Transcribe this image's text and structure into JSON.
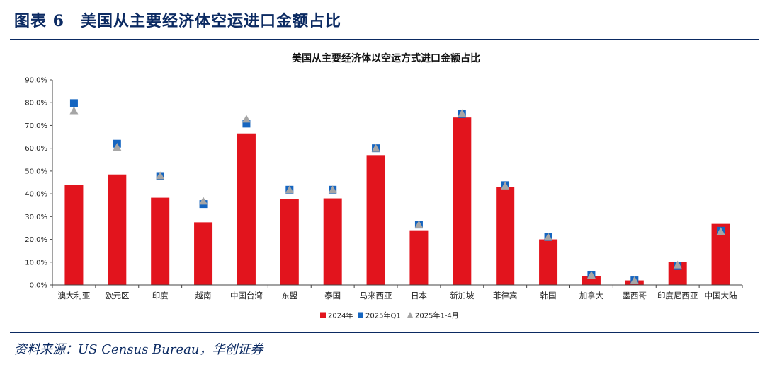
{
  "header": {
    "figure_title": "图表 6　美国从主要经济体空运进口金额占比"
  },
  "footer": {
    "source": "资料来源：US Census Bureau，华创证券"
  },
  "colors": {
    "brand_navy": "#0b2a62",
    "series_2024": "#e2141d",
    "series_2025q1": "#1565c0",
    "series_2025_1_4": "#a6a6a6"
  },
  "chart_data": {
    "type": "bar",
    "title": "美国从主要经济体以空运方式进口金额占比",
    "xlabel": "",
    "ylabel": "",
    "ylim": [
      0,
      90
    ],
    "yticks": [
      "0.0%",
      "10.0%",
      "20.0%",
      "30.0%",
      "40.0%",
      "50.0%",
      "60.0%",
      "70.0%",
      "80.0%",
      "90.0%"
    ],
    "grid": false,
    "legend_position": "bottom",
    "categories": [
      "澳大利亚",
      "欧元区",
      "印度",
      "越南",
      "中国台湾",
      "东盟",
      "泰国",
      "马来西亚",
      "日本",
      "新加坡",
      "菲律宾",
      "韩国",
      "加拿大",
      "墨西哥",
      "印度尼西亚",
      "中国大陆"
    ],
    "series": [
      {
        "name": "2024年",
        "type": "bar",
        "color": "#e2141d",
        "marker": "bar",
        "values": [
          44.0,
          48.5,
          38.3,
          27.5,
          66.5,
          37.8,
          38.0,
          57.0,
          24.0,
          73.5,
          43.0,
          20.0,
          4.0,
          2.0,
          10.0,
          26.8
        ]
      },
      {
        "name": "2025年Q1",
        "type": "marker",
        "color": "#1565c0",
        "marker": "square",
        "values": [
          79.8,
          62.0,
          47.8,
          35.5,
          70.8,
          41.8,
          41.8,
          60.0,
          26.5,
          75.0,
          43.8,
          21.0,
          4.5,
          2.0,
          8.3,
          23.8
        ]
      },
      {
        "name": "2025年1-4月",
        "type": "marker",
        "color": "#a6a6a6",
        "marker": "triangle",
        "values": [
          76.5,
          60.5,
          48.0,
          36.8,
          72.8,
          41.8,
          41.8,
          60.0,
          26.5,
          75.3,
          43.5,
          21.0,
          4.3,
          2.0,
          8.8,
          23.5
        ]
      }
    ]
  }
}
